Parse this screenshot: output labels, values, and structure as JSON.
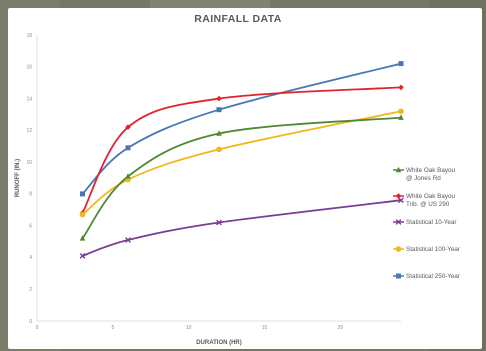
{
  "chart_data": {
    "type": "line",
    "title": "RAINFALL DATA",
    "xlabel": "DURATION (HR)",
    "ylabel": "RUNOFF (IN.)",
    "xlim": [
      0,
      24
    ],
    "ylim": [
      0,
      18
    ],
    "xticks": [
      0,
      5,
      10,
      15,
      20
    ],
    "yticks": [
      0,
      2,
      4,
      6,
      8,
      10,
      12,
      14,
      16,
      18
    ],
    "legend_position": "right",
    "grid": false,
    "smooth": true,
    "series": [
      {
        "name": [
          "White Oak Bayou",
          "@ Jones Rd"
        ],
        "color": "#4d8a32",
        "marker": "triangle",
        "x": [
          3,
          6,
          12,
          24
        ],
        "y": [
          5.2,
          9.1,
          11.8,
          12.8
        ]
      },
      {
        "name": [
          "White Oak Bayou",
          "Trib. @ US 290"
        ],
        "color": "#e0242b",
        "marker": "diamond",
        "x": [
          3,
          6,
          12,
          24
        ],
        "y": [
          6.8,
          12.2,
          14.0,
          14.7
        ]
      },
      {
        "name": [
          "Statistical 10-Year"
        ],
        "color": "#7a3d96",
        "marker": "x",
        "x": [
          3,
          6,
          12,
          24
        ],
        "y": [
          4.1,
          5.1,
          6.2,
          7.6
        ]
      },
      {
        "name": [
          "Statistical 100-Year"
        ],
        "color": "#f2b81a",
        "marker": "circle",
        "x": [
          3,
          6,
          12,
          24
        ],
        "y": [
          6.7,
          8.9,
          10.8,
          13.2
        ]
      },
      {
        "name": [
          "Statistical 250-Year"
        ],
        "color": "#4a76b8",
        "marker": "square",
        "x": [
          3,
          6,
          12,
          24
        ],
        "y": [
          8.0,
          10.9,
          13.3,
          16.2
        ]
      }
    ]
  }
}
